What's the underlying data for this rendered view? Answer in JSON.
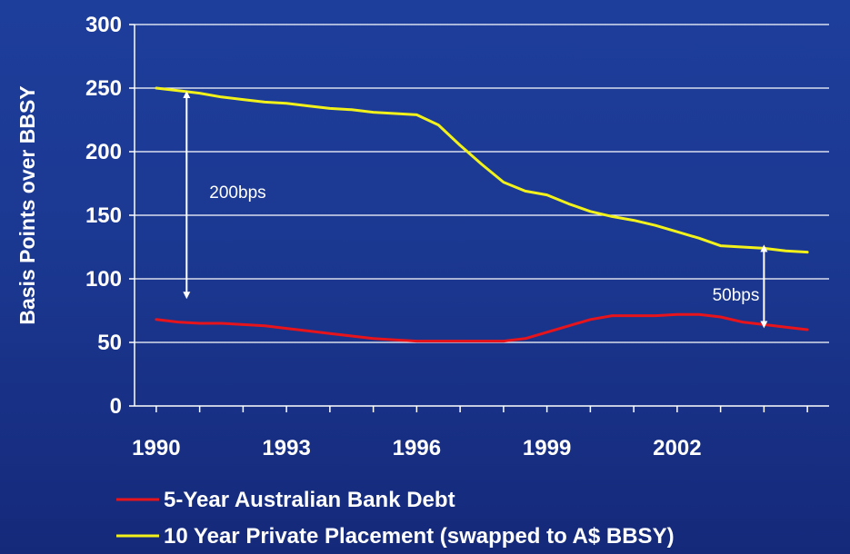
{
  "chart_data": {
    "type": "line",
    "title": "",
    "xlabel": "",
    "ylabel": "Basis Points over BBSY",
    "ylim": [
      0,
      300
    ],
    "yticks": [
      0,
      50,
      100,
      150,
      200,
      250,
      300
    ],
    "xlim": [
      1989.5,
      2005.5
    ],
    "xticks": [
      1990,
      1993,
      1996,
      1999,
      2002
    ],
    "grid": "horizontal",
    "legend_placement": "bottom",
    "series": [
      {
        "name": "5-Year Australian Bank Debt",
        "color": "#E8141B",
        "x": [
          1990.0,
          1990.5,
          1991.0,
          1991.5,
          1992.0,
          1992.5,
          1993.0,
          1993.5,
          1994.0,
          1994.5,
          1995.0,
          1995.5,
          1996.0,
          1996.5,
          1997.0,
          1997.5,
          1998.0,
          1998.5,
          1999.0,
          1999.5,
          2000.0,
          2000.5,
          2001.0,
          2001.5,
          2002.0,
          2002.5,
          2003.0,
          2003.5,
          2004.0,
          2004.5,
          2005.0
        ],
        "y": [
          68,
          66,
          65,
          65,
          64,
          63,
          61,
          59,
          57,
          55,
          53,
          52,
          51,
          51,
          51,
          51,
          51,
          53,
          58,
          63,
          68,
          71,
          71,
          71,
          72,
          72,
          70,
          66,
          64,
          62,
          60
        ]
      },
      {
        "name": "10 Year Private Placement (swapped to A$ BBSY)",
        "color": "#F2F21A",
        "x": [
          1990.0,
          1990.5,
          1991.0,
          1991.5,
          1992.0,
          1992.5,
          1993.0,
          1993.5,
          1994.0,
          1994.5,
          1995.0,
          1995.5,
          1996.0,
          1996.5,
          1997.0,
          1997.5,
          1998.0,
          1998.5,
          1999.0,
          1999.5,
          2000.0,
          2000.5,
          2001.0,
          2001.5,
          2002.0,
          2002.5,
          2003.0,
          2003.5,
          2004.0,
          2004.5,
          2005.0
        ],
        "y": [
          250,
          248,
          246,
          243,
          241,
          239,
          238,
          236,
          234,
          233,
          231,
          230,
          229,
          221,
          205,
          190,
          176,
          169,
          166,
          159,
          153,
          149,
          146,
          142,
          137,
          132,
          126,
          125,
          124,
          122,
          121
        ]
      }
    ],
    "annotations": [
      {
        "text": "200bps",
        "x": 1990.7,
        "y_from": 245,
        "y_to": 87
      },
      {
        "text": "50bps",
        "x": 2004.0,
        "y_from": 124,
        "y_to": 64
      }
    ]
  }
}
